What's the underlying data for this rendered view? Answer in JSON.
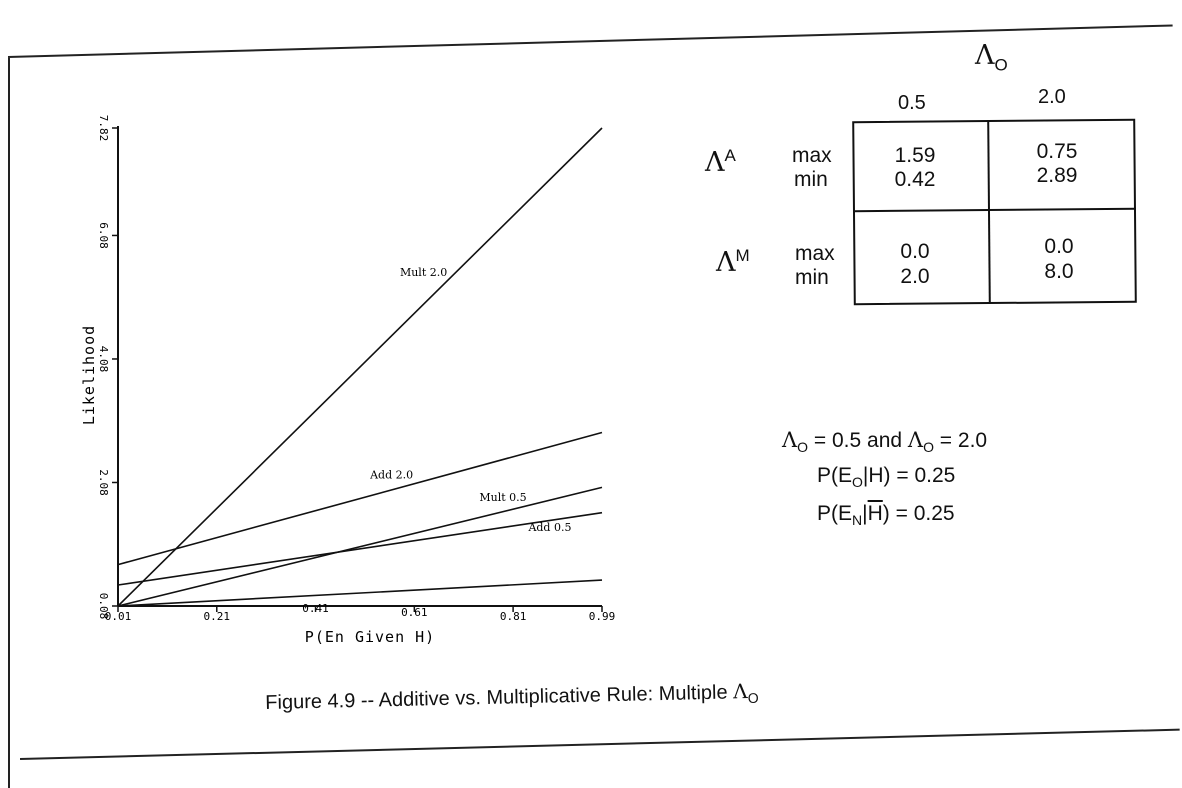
{
  "chart_data": {
    "type": "line",
    "xlabel": "P(En Given H)",
    "ylabel": "Likelihood",
    "xlim": [
      0.01,
      0.99
    ],
    "ylim": [
      0.08,
      7.82
    ],
    "xticks": [
      "0.01",
      "0.21",
      "0.41",
      "0.61",
      "0.81",
      "0.99"
    ],
    "yticks": [
      "0.08",
      "2.08",
      "4.08",
      "6.08",
      "7.82"
    ],
    "grid": false,
    "series": [
      {
        "name": "Mult 2.0",
        "points": [
          [
            0.01,
            0.08
          ],
          [
            0.99,
            7.82
          ]
        ]
      },
      {
        "name": "Add 2.0",
        "points": [
          [
            0.01,
            0.75
          ],
          [
            0.99,
            2.89
          ]
        ]
      },
      {
        "name": "Mult 0.5",
        "points": [
          [
            0.01,
            0.08
          ],
          [
            0.99,
            2.0
          ]
        ]
      },
      {
        "name": "Add 0.5",
        "points": [
          [
            0.01,
            0.42
          ],
          [
            0.99,
            1.59
          ]
        ]
      },
      {
        "name": "",
        "points": [
          [
            0.01,
            0.08
          ],
          [
            0.99,
            0.5
          ]
        ]
      }
    ]
  },
  "table": {
    "top_header": "Λ",
    "top_header_sub": "O",
    "col_headers": [
      "0.5",
      "2.0"
    ],
    "rows": [
      {
        "symbol": "Λ",
        "sup": "A",
        "labels": [
          "max",
          "min"
        ],
        "values": [
          [
            "1.59",
            "0.42"
          ],
          [
            "0.75",
            "2.89"
          ]
        ]
      },
      {
        "symbol": "Λ",
        "sup": "M",
        "labels": [
          "max",
          "min"
        ],
        "values": [
          [
            "0.0",
            "2.0"
          ],
          [
            "0.0",
            "8.0"
          ]
        ]
      }
    ]
  },
  "notes": {
    "line1": {
      "a": "Λ",
      "a_sub": "O",
      "b": " = 0.5 and ",
      "c": "Λ",
      "c_sub": "O",
      "d": " = 2.0"
    },
    "line2": {
      "pre": "P(E",
      "sub": "O",
      "post": "|H) = 0.25"
    },
    "line3": {
      "pre": "P(E",
      "sub": "N",
      "mid": "|",
      "over": "H",
      "post": ") = 0.25"
    }
  },
  "caption": {
    "text": "Figure 4.9 -- Additive vs. Multiplicative Rule: Multiple ",
    "sym": "Λ",
    "sub": "O"
  }
}
